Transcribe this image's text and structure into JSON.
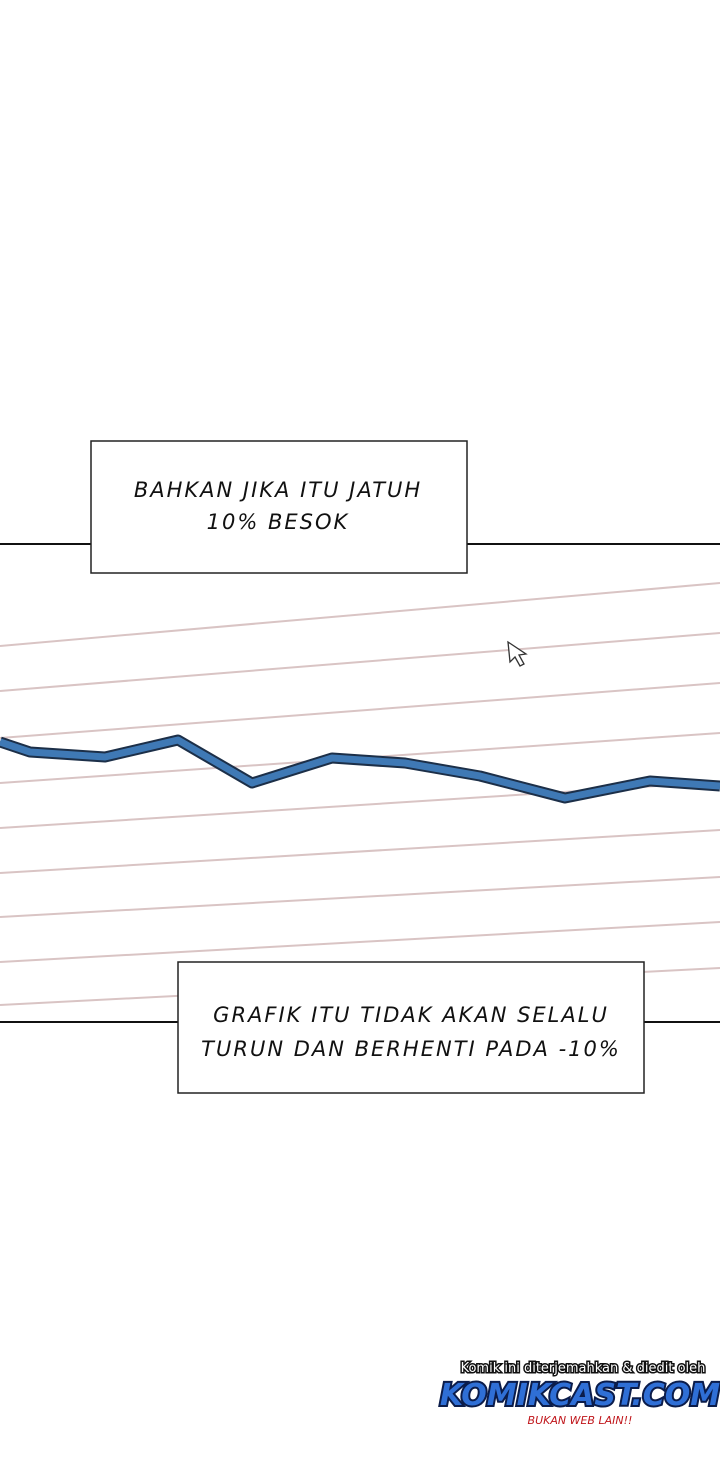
{
  "captions": [
    {
      "lines": [
        "BAHKAN JIKA ITU JATUH",
        "10% BESOK"
      ]
    },
    {
      "lines": [
        "GRAFIK ITU TIDAK AKAN SELALU",
        "TURUN DAN BERHENTI PADA -10%"
      ]
    }
  ],
  "watermark": {
    "credit": "Komik ini diterjemahkan & diedit oleh",
    "brand": "KOMIKCAST.COM",
    "tagline": "BUKAN WEB LAIN!!"
  }
}
